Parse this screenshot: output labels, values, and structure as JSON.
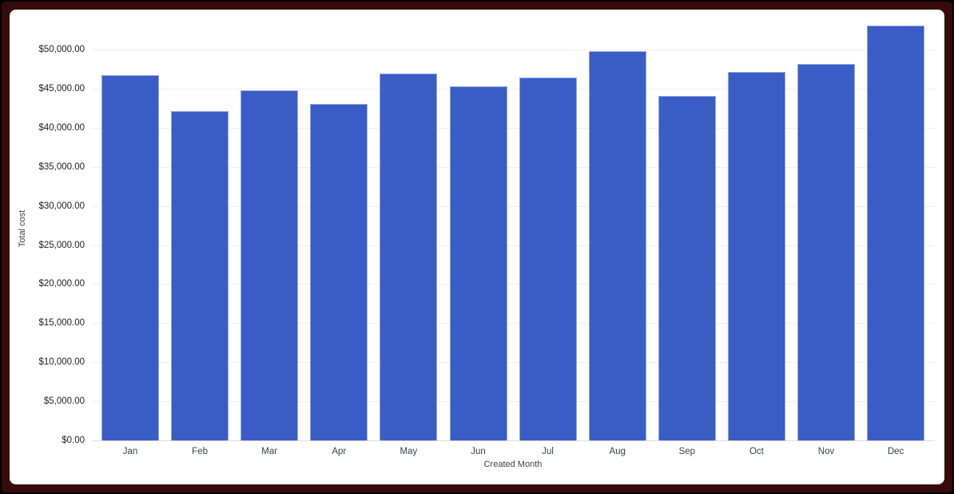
{
  "frame": {
    "outer_border_color": "#000000",
    "inner_border_color": "#380b0b",
    "card_background": "#ffffff"
  },
  "chart_data": {
    "type": "bar",
    "title": "",
    "categories": [
      "Jan",
      "Feb",
      "Mar",
      "Apr",
      "May",
      "Jun",
      "Jul",
      "Aug",
      "Sep",
      "Oct",
      "Nov",
      "Dec"
    ],
    "values": [
      46700,
      42100,
      44800,
      43100,
      46900,
      45300,
      46400,
      49800,
      44100,
      47100,
      48200,
      53100
    ],
    "xlabel": "Created Month",
    "ylabel": "Total cost",
    "ylim": [
      0,
      55000
    ],
    "ytick_step": 5000,
    "ytick_labels": [
      "$0.00",
      "$5,000.00",
      "$10,000.00",
      "$15,000.00",
      "$20,000.00",
      "$25,000.00",
      "$30,000.00",
      "$35,000.00",
      "$40,000.00",
      "$45,000.00",
      "$50,000.00"
    ],
    "grid": true,
    "legend": "none",
    "bar_color": "#3a5dc5"
  }
}
